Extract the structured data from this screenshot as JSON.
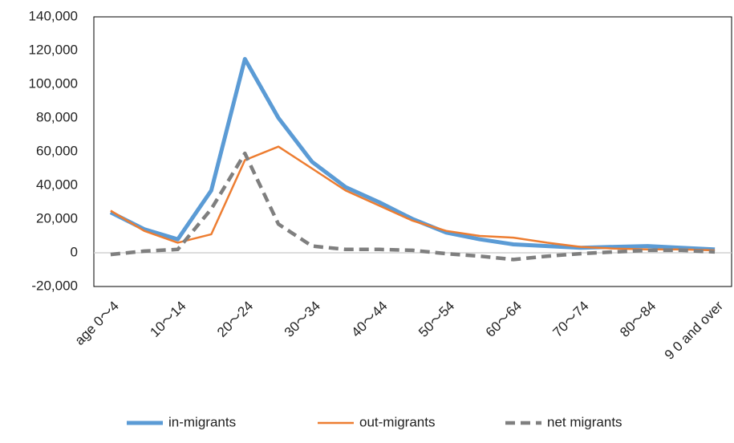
{
  "chart_data": {
    "type": "line",
    "categories": [
      "age 0～4",
      null,
      "10～14",
      null,
      "20～24",
      null,
      "30～34",
      null,
      "40～44",
      null,
      "50～54",
      null,
      "60～64",
      null,
      "70～74",
      null,
      "80～84",
      null,
      "9 0 and over"
    ],
    "series": [
      {
        "name": "in-migrants",
        "color": "#5b9bd5",
        "values": [
          24000,
          14000,
          8000,
          37000,
          115000,
          80000,
          54000,
          39000,
          30000,
          20000,
          12000,
          8000,
          5000,
          4000,
          3000,
          3500,
          4000,
          3000,
          2000
        ]
      },
      {
        "name": "out-migrants",
        "color": "#ed7d31",
        "values": [
          25000,
          13000,
          6000,
          11000,
          55000,
          63000,
          50000,
          37000,
          28000,
          19000,
          13000,
          10000,
          9000,
          6000,
          3500,
          2500,
          2000,
          2000,
          1500
        ]
      },
      {
        "name": "net migrants",
        "color": "#7f7f7f",
        "values": [
          -1000,
          1000,
          2000,
          26000,
          59000,
          17000,
          4000,
          2000,
          2000,
          1500,
          -500,
          -2000,
          -4000,
          -2000,
          -500,
          500,
          1500,
          1500,
          500
        ]
      }
    ],
    "ylim": [
      -20000,
      140000
    ],
    "yticks": [
      {
        "value": -20000,
        "label": "-20,000"
      },
      0,
      {
        "value": 20000,
        "label": "20,000"
      },
      {
        "value": 40000,
        "label": "40,000"
      },
      {
        "value": 60000,
        "label": "60,000"
      },
      {
        "value": 80000,
        "label": "80,000"
      },
      {
        "value": 100000,
        "label": "100,000"
      },
      {
        "value": 120000,
        "label": "120,000"
      },
      {
        "value": 140000,
        "label": "140,000"
      }
    ],
    "legend": "bottom"
  }
}
